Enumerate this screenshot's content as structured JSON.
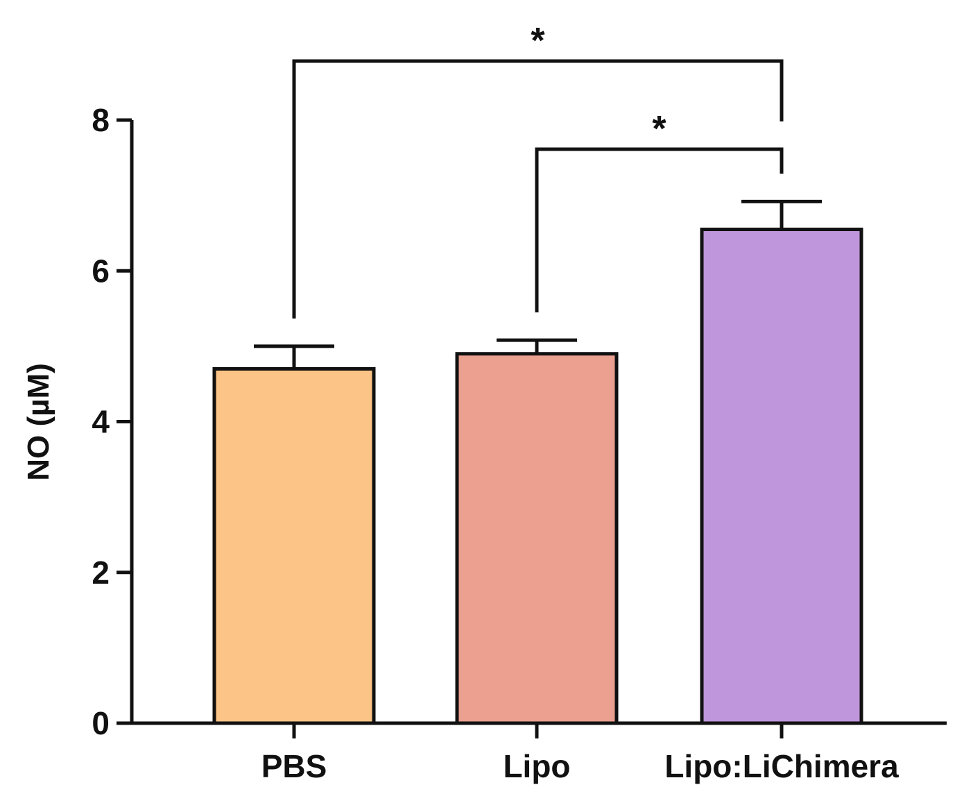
{
  "chart_data": {
    "type": "bar",
    "categories": [
      "PBS",
      "Lipo",
      "Lipo:LiChimera"
    ],
    "values": [
      4.7,
      4.9,
      6.55
    ],
    "error": [
      0.3,
      0.18,
      0.37
    ],
    "colors": [
      "#FCC486",
      "#EBA090",
      "#BF96DC"
    ],
    "ylabel": "NO (µM)",
    "ylim": [
      0,
      8
    ],
    "yticks": [
      {
        "value": 0,
        "label": "0"
      },
      {
        "value": 2,
        "label": "2"
      },
      {
        "value": 4,
        "label": "4"
      },
      {
        "value": 6,
        "label": "6"
      },
      {
        "value": 8,
        "label": "8"
      }
    ],
    "significance": [
      {
        "from": 0,
        "to": 2,
        "label": "*"
      },
      {
        "from": 1,
        "to": 2,
        "label": "*"
      }
    ],
    "grid": false,
    "legend": "none"
  }
}
